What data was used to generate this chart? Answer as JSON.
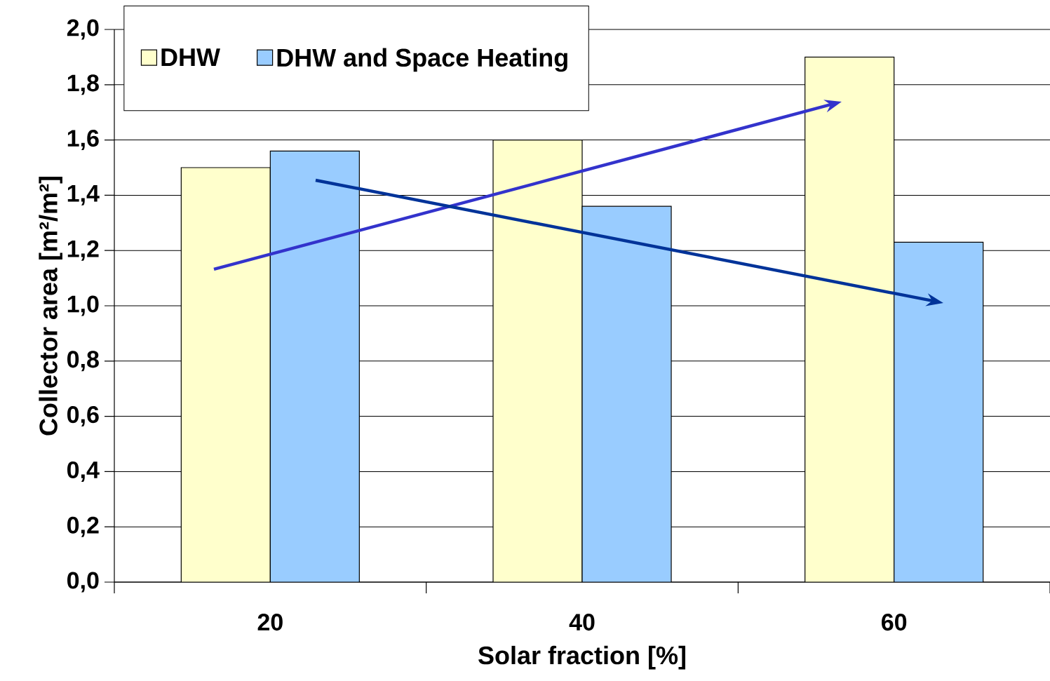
{
  "chart_data": {
    "type": "bar",
    "xlabel": "Solar fraction [%]",
    "ylabel": "Collector area  [m²/m²]",
    "categories": [
      "20",
      "40",
      "60"
    ],
    "series": [
      {
        "name": "DHW",
        "color": "#ffffcc",
        "values": [
          1.5,
          1.6,
          1.9
        ]
      },
      {
        "name": "DHW and Space Heating",
        "color": "#99ccff",
        "values": [
          1.56,
          1.36,
          1.23
        ]
      }
    ],
    "ylim": [
      0,
      2
    ],
    "yticks": [
      {
        "value": 0,
        "label": "0,0"
      },
      {
        "value": 0.2,
        "label": "0,2"
      },
      {
        "value": 0.4,
        "label": "0,4"
      },
      {
        "value": 0.6,
        "label": "0,6"
      },
      {
        "value": 0.8,
        "label": "0,8"
      },
      {
        "value": 1.0,
        "label": "1,0"
      },
      {
        "value": 1.2,
        "label": "1,2"
      },
      {
        "value": 1.4,
        "label": "1,4"
      },
      {
        "value": 1.6,
        "label": "1,6"
      },
      {
        "value": 1.8,
        "label": "1,8"
      },
      {
        "value": 2.0,
        "label": "2,0"
      }
    ],
    "grid": "y",
    "legend": "top left"
  }
}
